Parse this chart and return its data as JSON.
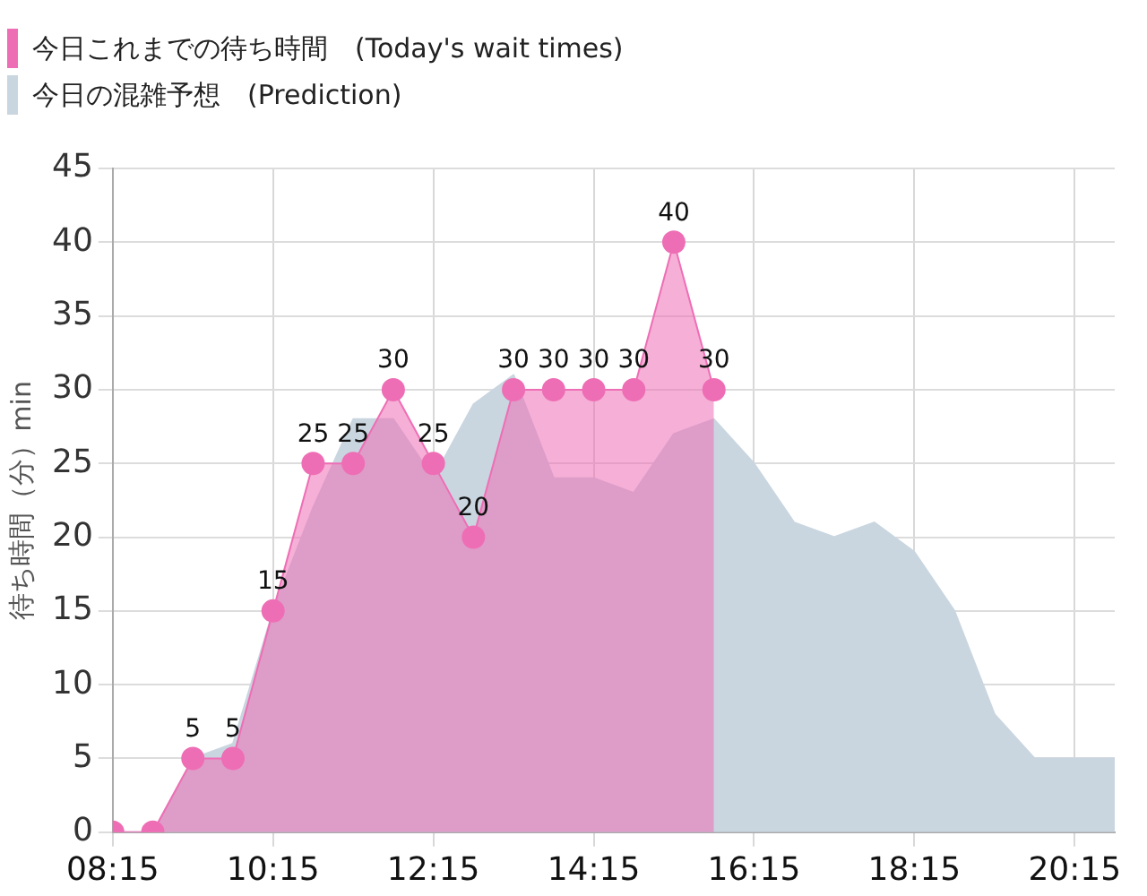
{
  "chart_data": {
    "type": "area",
    "ylabel": "待ち時間（分）min",
    "legend": "top left",
    "grid": true,
    "xlim": [
      8.25,
      20.75
    ],
    "xticks": [
      {
        "value": 8.25,
        "label": "08:15"
      },
      {
        "value": 10.25,
        "label": "10:15"
      },
      {
        "value": 12.25,
        "label": "12:15"
      },
      {
        "value": 14.25,
        "label": "14:15"
      },
      {
        "value": 16.25,
        "label": "16:15"
      },
      {
        "value": 18.25,
        "label": "18:15"
      },
      {
        "value": 20.25,
        "label": "20:15"
      }
    ],
    "ylim": [
      0,
      45
    ],
    "yticks": [
      0,
      5,
      10,
      15,
      20,
      25,
      30,
      35,
      40,
      45
    ],
    "series": [
      {
        "name": "今日これまでの待ち時間　(Today's wait times)",
        "color": "#ee6eb5",
        "marker": "circle",
        "x": [
          8.25,
          8.75,
          9.25,
          9.75,
          10.25,
          10.75,
          11.25,
          11.75,
          12.25,
          12.75,
          13.25,
          13.75,
          14.25,
          14.75,
          15.25,
          15.75
        ],
        "values": [
          0,
          0,
          5,
          5,
          15,
          25,
          25,
          30,
          25,
          20,
          30,
          30,
          30,
          30,
          40,
          30
        ],
        "value_labels": [
          null,
          null,
          "5",
          "5",
          "15",
          "25",
          "25",
          "30",
          "25",
          "20",
          "30",
          "30",
          "30",
          "30",
          "40",
          "30"
        ]
      },
      {
        "name": "今日の混雑予想　(Prediction)",
        "color": "#c9d6e0",
        "marker": "none",
        "x": [
          8.25,
          8.75,
          9.25,
          9.75,
          10.25,
          10.75,
          11.25,
          11.75,
          12.25,
          12.75,
          13.25,
          13.75,
          14.25,
          14.75,
          15.25,
          15.75,
          16.25,
          16.75,
          17.25,
          17.75,
          18.25,
          18.75,
          19.25,
          19.75,
          20.25,
          20.75
        ],
        "values": [
          0,
          0,
          5,
          6,
          15,
          22,
          28,
          28,
          24,
          29,
          31,
          24,
          24,
          23,
          27,
          28,
          25,
          21,
          20,
          21,
          19,
          15,
          8,
          5,
          5,
          5
        ]
      }
    ]
  }
}
